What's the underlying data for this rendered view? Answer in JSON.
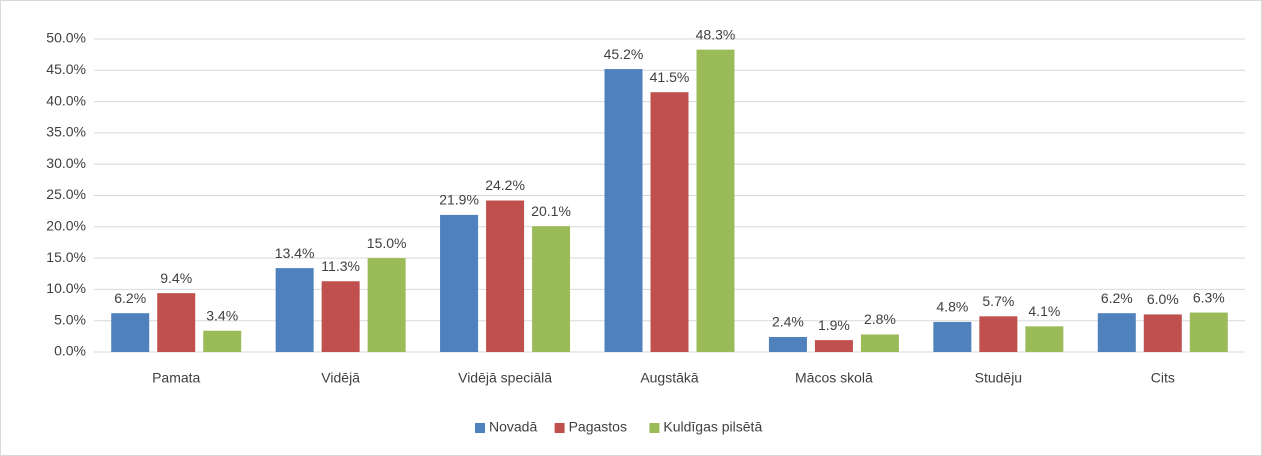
{
  "chart_data": {
    "type": "bar",
    "categories": [
      "Pamata",
      "Vidējā",
      "Vidējā speciālā",
      "Augstākā",
      "Mācos skolā",
      "Studēju",
      "Cits"
    ],
    "series": [
      {
        "name": "Novadā",
        "color": "#4f81bd",
        "values": [
          6.2,
          13.4,
          21.9,
          45.2,
          2.4,
          4.8,
          6.2
        ],
        "value_labels": [
          "6.2%",
          "13.4%",
          "21.9%",
          "45.2%",
          "2.4%",
          "4.8%",
          "6.2%"
        ]
      },
      {
        "name": "Pagastos",
        "color": "#c0504d",
        "values": [
          9.4,
          11.3,
          24.2,
          41.5,
          1.9,
          5.7,
          6.0
        ],
        "value_labels": [
          "9.4%",
          "11.3%",
          "24.2%",
          "41.5%",
          "1.9%",
          "5.7%",
          "6.0%"
        ]
      },
      {
        "name": "Kuldīgas pilsētā",
        "color": "#9bbb59",
        "values": [
          3.4,
          15.0,
          20.1,
          48.3,
          2.8,
          4.1,
          6.3
        ],
        "value_labels": [
          "3.4%",
          "15.0%",
          "20.1%",
          "48.3%",
          "2.8%",
          "4.1%",
          "6.3%"
        ]
      }
    ],
    "ylim": [
      0,
      50
    ],
    "yticks": [
      {
        "value": 0,
        "label": "0.0%"
      },
      {
        "value": 5,
        "label": "5.0%"
      },
      {
        "value": 10,
        "label": "10.0%"
      },
      {
        "value": 15,
        "label": "15.0%"
      },
      {
        "value": 20,
        "label": "20.0%"
      },
      {
        "value": 25,
        "label": "25.0%"
      },
      {
        "value": 30,
        "label": "30.0%"
      },
      {
        "value": 35,
        "label": "35.0%"
      },
      {
        "value": 40,
        "label": "40.0%"
      },
      {
        "value": 45,
        "label": "45.0%"
      },
      {
        "value": 50,
        "label": "50.0%"
      }
    ],
    "grid": true,
    "legend": "bottom"
  }
}
